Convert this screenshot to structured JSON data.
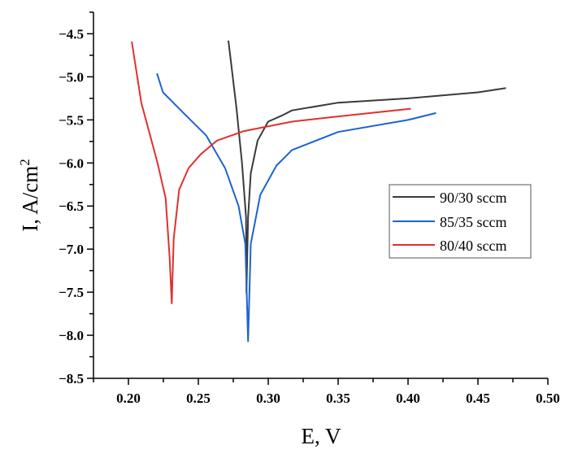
{
  "chart_data": {
    "type": "line",
    "title": "",
    "xlabel": "E, V",
    "ylabel_main": "I, A/cm",
    "ylabel_sup": "2",
    "xlim": [
      0.175,
      0.5
    ],
    "ylim": [
      -8.5,
      -4.25
    ],
    "xticks": [
      "0.20",
      "0.25",
      "0.30",
      "0.35",
      "0.40",
      "0.45",
      "0.50"
    ],
    "yticks": [
      "-4.5",
      "-5.0",
      "-5.5",
      "-6.0",
      "-6.5",
      "-7.0",
      "-7.5",
      "-8.0",
      "-8.5"
    ],
    "grid": false,
    "legend_position": "right-center",
    "series": [
      {
        "name": "90/30 sccm",
        "color": "#3a3a3a",
        "points": [
          [
            0.2715,
            -4.58
          ],
          [
            0.2773,
            -5.37
          ],
          [
            0.2812,
            -6.0
          ],
          [
            0.2841,
            -6.63
          ],
          [
            0.2844,
            -7.51
          ],
          [
            0.2856,
            -6.63
          ],
          [
            0.2875,
            -6.12
          ],
          [
            0.2924,
            -5.74
          ],
          [
            0.2999,
            -5.52
          ],
          [
            0.3097,
            -5.45
          ],
          [
            0.317,
            -5.39
          ],
          [
            0.35,
            -5.3
          ],
          [
            0.4,
            -5.25
          ],
          [
            0.45,
            -5.18
          ],
          [
            0.47,
            -5.13
          ]
        ]
      },
      {
        "name": "85/35 sccm",
        "color": "#1c64d0",
        "points": [
          [
            0.2204,
            -4.96
          ],
          [
            0.2247,
            -5.18
          ],
          [
            0.24,
            -5.43
          ],
          [
            0.2556,
            -5.68
          ],
          [
            0.2691,
            -6.06
          ],
          [
            0.2788,
            -6.5
          ],
          [
            0.2836,
            -6.94
          ],
          [
            0.2856,
            -8.07
          ],
          [
            0.2875,
            -6.94
          ],
          [
            0.2943,
            -6.37
          ],
          [
            0.3059,
            -6.03
          ],
          [
            0.317,
            -5.85
          ],
          [
            0.35,
            -5.64
          ],
          [
            0.4,
            -5.5
          ],
          [
            0.42,
            -5.42
          ]
        ]
      },
      {
        "name": "80/40 sccm",
        "color": "#e0302f",
        "points": [
          [
            0.2024,
            -4.59
          ],
          [
            0.2092,
            -5.3
          ],
          [
            0.2208,
            -6.0
          ],
          [
            0.2266,
            -6.41
          ],
          [
            0.2295,
            -7.1
          ],
          [
            0.231,
            -7.63
          ],
          [
            0.2324,
            -6.88
          ],
          [
            0.2363,
            -6.31
          ],
          [
            0.243,
            -6.06
          ],
          [
            0.2517,
            -5.9
          ],
          [
            0.2633,
            -5.74
          ],
          [
            0.2827,
            -5.63
          ],
          [
            0.317,
            -5.52
          ],
          [
            0.35,
            -5.46
          ],
          [
            0.402,
            -5.37
          ]
        ]
      }
    ]
  }
}
